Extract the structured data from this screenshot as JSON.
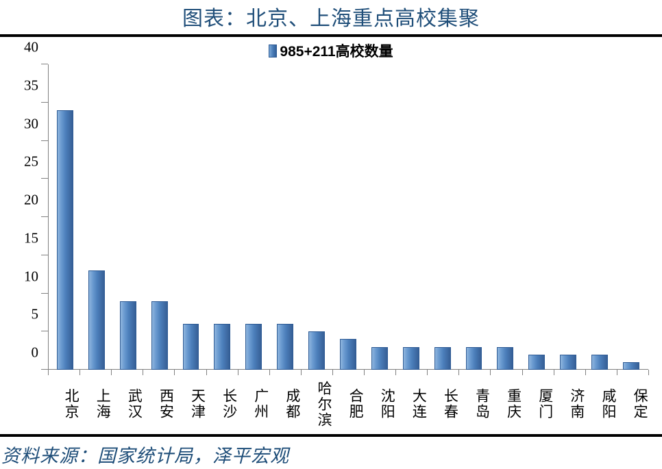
{
  "title": "图表：北京、上海重点高校集聚",
  "legend": {
    "label": "985+211高校数量",
    "swatch_color": "#5082bb"
  },
  "source": "资料来源：国家统计局，泽平宏观",
  "chart": {
    "type": "bar",
    "bar_color_gradient": [
      "#8fb6de",
      "#6a9ad0",
      "#4b7eba",
      "#365f96"
    ],
    "bar_border_color": "#2d5a94",
    "axis_color": "#808080",
    "background_color": "#ffffff",
    "bar_width": 0.52,
    "y_axis": {
      "min": 0,
      "max": 40,
      "step": 5,
      "ticks": [
        0,
        5,
        10,
        15,
        20,
        25,
        30,
        35,
        40
      ],
      "label_fontsize": 21,
      "label_color": "#000000",
      "font_family": "Times New Roman"
    },
    "categories": [
      "北京",
      "上海",
      "武汉",
      "西安",
      "天津",
      "长沙",
      "广州",
      "成都",
      "哈尔滨",
      "合肥",
      "沈阳",
      "大连",
      "长春",
      "青岛",
      "重庆",
      "厦门",
      "济南",
      "咸阳",
      "保定"
    ],
    "values": [
      34,
      13,
      9,
      9,
      6,
      6,
      6,
      6,
      5,
      4,
      3,
      3,
      3,
      3,
      3,
      2,
      2,
      2,
      1
    ],
    "x_label_fontsize": 21,
    "x_label_color": "#000000",
    "x_label_orientation": "vertical"
  },
  "title_style": {
    "fontsize": 30,
    "color": "#1f4e79",
    "font_family": "SimSun"
  },
  "source_style": {
    "fontsize": 27,
    "color": "#1f4e79",
    "font_style": "italic",
    "font_family": "KaiTi"
  },
  "legend_style": {
    "fontsize": 21,
    "font_weight": "bold",
    "color": "#000000"
  },
  "border_color": "#000000",
  "border_width": 2.5
}
